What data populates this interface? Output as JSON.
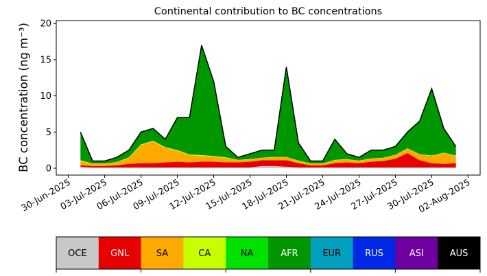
{
  "chart_data": {
    "type": "stacked_area",
    "title": "Continental contribution to BC concentrations",
    "y_label": "BC concentration (ng m⁻³)",
    "x": [
      "2025-07-01",
      "2025-07-02",
      "2025-07-03",
      "2025-07-04",
      "2025-07-05",
      "2025-07-06",
      "2025-07-07",
      "2025-07-08",
      "2025-07-09",
      "2025-07-10",
      "2025-07-11",
      "2025-07-12",
      "2025-07-13",
      "2025-07-14",
      "2025-07-15",
      "2025-07-16",
      "2025-07-17",
      "2025-07-18",
      "2025-07-19",
      "2025-07-20",
      "2025-07-21",
      "2025-07-22",
      "2025-07-23",
      "2025-07-24",
      "2025-07-25",
      "2025-07-26",
      "2025-07-27",
      "2025-07-28",
      "2025-07-29",
      "2025-07-30",
      "2025-07-31",
      "2025-08-01"
    ],
    "xlim": [
      "2025-06-29",
      "2025-08-03"
    ],
    "xticks": [
      {
        "value": "2025-06-30",
        "label": "30-Jun-2025"
      },
      {
        "value": "2025-07-03",
        "label": "03-Jul-2025"
      },
      {
        "value": "2025-07-06",
        "label": "06-Jul-2025"
      },
      {
        "value": "2025-07-09",
        "label": "09-Jul-2025"
      },
      {
        "value": "2025-07-12",
        "label": "12-Jul-2025"
      },
      {
        "value": "2025-07-15",
        "label": "15-Jul-2025"
      },
      {
        "value": "2025-07-18",
        "label": "18-Jul-2025"
      },
      {
        "value": "2025-07-21",
        "label": "21-Jul-2025"
      },
      {
        "value": "2025-07-24",
        "label": "24-Jul-2025"
      },
      {
        "value": "2025-07-27",
        "label": "27-Jul-2025"
      },
      {
        "value": "2025-07-30",
        "label": "30-Jul-2025"
      },
      {
        "value": "2025-08-02",
        "label": "02-Aug-2025"
      }
    ],
    "ylim": [
      -0.95,
      20.4
    ],
    "yticks": [
      0,
      5,
      10,
      15,
      20
    ],
    "total_line_color": "#000000",
    "series": [
      {
        "name": "OCE",
        "color": "#c8c8c8",
        "values": [
          0.2,
          0.1,
          0.1,
          0.1,
          0.1,
          0.1,
          0.1,
          0.1,
          0.1,
          0.1,
          0.1,
          0.1,
          0.1,
          0.1,
          0.1,
          0.3,
          0.3,
          0.2,
          0.1,
          0.1,
          0.1,
          0.1,
          0.1,
          0.1,
          0.1,
          0.1,
          0.1,
          0.1,
          0.1,
          0.1,
          0.1,
          0.1
        ]
      },
      {
        "name": "GNL",
        "color": "#e60000",
        "values": [
          0.2,
          0.2,
          0.2,
          0.3,
          0.5,
          0.6,
          0.6,
          0.7,
          0.8,
          0.7,
          0.8,
          0.8,
          0.7,
          0.7,
          0.8,
          0.8,
          0.8,
          0.9,
          0.6,
          0.3,
          0.3,
          0.6,
          0.7,
          0.6,
          0.8,
          0.9,
          1.2,
          2.0,
          1.0,
          0.6,
          0.5,
          0.6
        ]
      },
      {
        "name": "SA",
        "color": "#ffaa00",
        "values": [
          0.6,
          0.3,
          0.3,
          0.4,
          0.8,
          2.5,
          3.0,
          2.0,
          1.5,
          1.0,
          0.8,
          0.7,
          0.6,
          0.3,
          0.3,
          0.3,
          0.4,
          0.4,
          0.3,
          0.2,
          0.2,
          0.4,
          0.4,
          0.3,
          0.4,
          0.4,
          0.5,
          0.6,
          0.8,
          1.0,
          1.5,
          1.0
        ]
      },
      {
        "name": "CA",
        "color": "#c8ff00",
        "values": [
          0.1,
          0.05,
          0.05,
          0.05,
          0.1,
          0.1,
          0.1,
          0.1,
          0.1,
          0.1,
          0.1,
          0.1,
          0.1,
          0.05,
          0.05,
          0.05,
          0.05,
          0.05,
          0.05,
          0.05,
          0.05,
          0.05,
          0.05,
          0.05,
          0.05,
          0.05,
          0.05,
          0.05,
          0.05,
          0.05,
          0.05,
          0.05
        ]
      },
      {
        "name": "NA",
        "color": "#00e100",
        "values": [
          0,
          0,
          0,
          0,
          0,
          0,
          0,
          0,
          0,
          0,
          0,
          0,
          0,
          0,
          0,
          0,
          0,
          0,
          0,
          0,
          0,
          0,
          0,
          0,
          0,
          0,
          0,
          0,
          0,
          0,
          0,
          0
        ]
      },
      {
        "name": "AFR",
        "color": "#009600",
        "values": [
          3.9,
          0.35,
          0.35,
          0.65,
          1.0,
          1.7,
          1.7,
          1.1,
          4.5,
          5.1,
          15.2,
          10.3,
          1.5,
          0.35,
          0.75,
          1.05,
          0.95,
          12.45,
          2.45,
          0.35,
          0.35,
          2.85,
          0.75,
          0.45,
          1.15,
          1.05,
          1.15,
          2.25,
          4.55,
          9.25,
          3.35,
          1.25
        ]
      },
      {
        "name": "EUR",
        "color": "#00a0be",
        "values": [
          0,
          0,
          0,
          0,
          0,
          0,
          0,
          0,
          0,
          0,
          0,
          0,
          0,
          0,
          0,
          0,
          0,
          0,
          0,
          0,
          0,
          0,
          0,
          0,
          0,
          0,
          0,
          0,
          0,
          0,
          0,
          0
        ]
      },
      {
        "name": "RUS",
        "color": "#0028e6",
        "values": [
          0,
          0,
          0,
          0,
          0,
          0,
          0,
          0,
          0,
          0,
          0,
          0,
          0,
          0,
          0,
          0,
          0,
          0,
          0,
          0,
          0,
          0,
          0,
          0,
          0,
          0,
          0,
          0,
          0,
          0,
          0,
          0
        ]
      },
      {
        "name": "ASI",
        "color": "#6e00a0",
        "values": [
          0,
          0,
          0,
          0,
          0,
          0,
          0,
          0,
          0,
          0,
          0,
          0,
          0,
          0,
          0,
          0,
          0,
          0,
          0,
          0,
          0,
          0,
          0,
          0,
          0,
          0,
          0,
          0,
          0,
          0,
          0,
          0
        ]
      },
      {
        "name": "AUS",
        "color": "#000000",
        "values": [
          0,
          0,
          0,
          0,
          0,
          0,
          0,
          0,
          0,
          0,
          0,
          0,
          0,
          0,
          0,
          0,
          0,
          0,
          0,
          0,
          0,
          0,
          0,
          0,
          0,
          0,
          0,
          0,
          0,
          0,
          0,
          0
        ]
      }
    ]
  }
}
